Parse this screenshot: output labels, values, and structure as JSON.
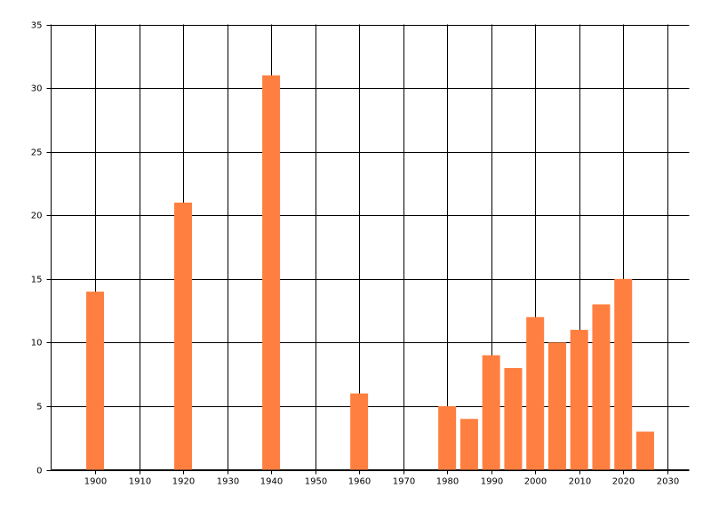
{
  "chart_data": {
    "type": "bar",
    "x": [
      1900,
      1920,
      1940,
      1960,
      1980,
      1985,
      1990,
      1995,
      2000,
      2005,
      2010,
      2015,
      2020,
      2025
    ],
    "values": [
      14,
      21,
      31,
      6,
      5,
      4,
      9,
      8,
      12,
      10,
      11,
      13,
      15,
      3
    ],
    "color": "#ff7f40",
    "xlim": [
      1890,
      2035
    ],
    "xticks": [
      1900,
      1910,
      1920,
      1930,
      1940,
      1950,
      1960,
      1970,
      1980,
      1990,
      2000,
      2010,
      2020,
      2030
    ],
    "ylim": [
      0,
      35
    ],
    "yticks": [
      0,
      5,
      10,
      15,
      20,
      25,
      30,
      35
    ],
    "grid": true
  }
}
